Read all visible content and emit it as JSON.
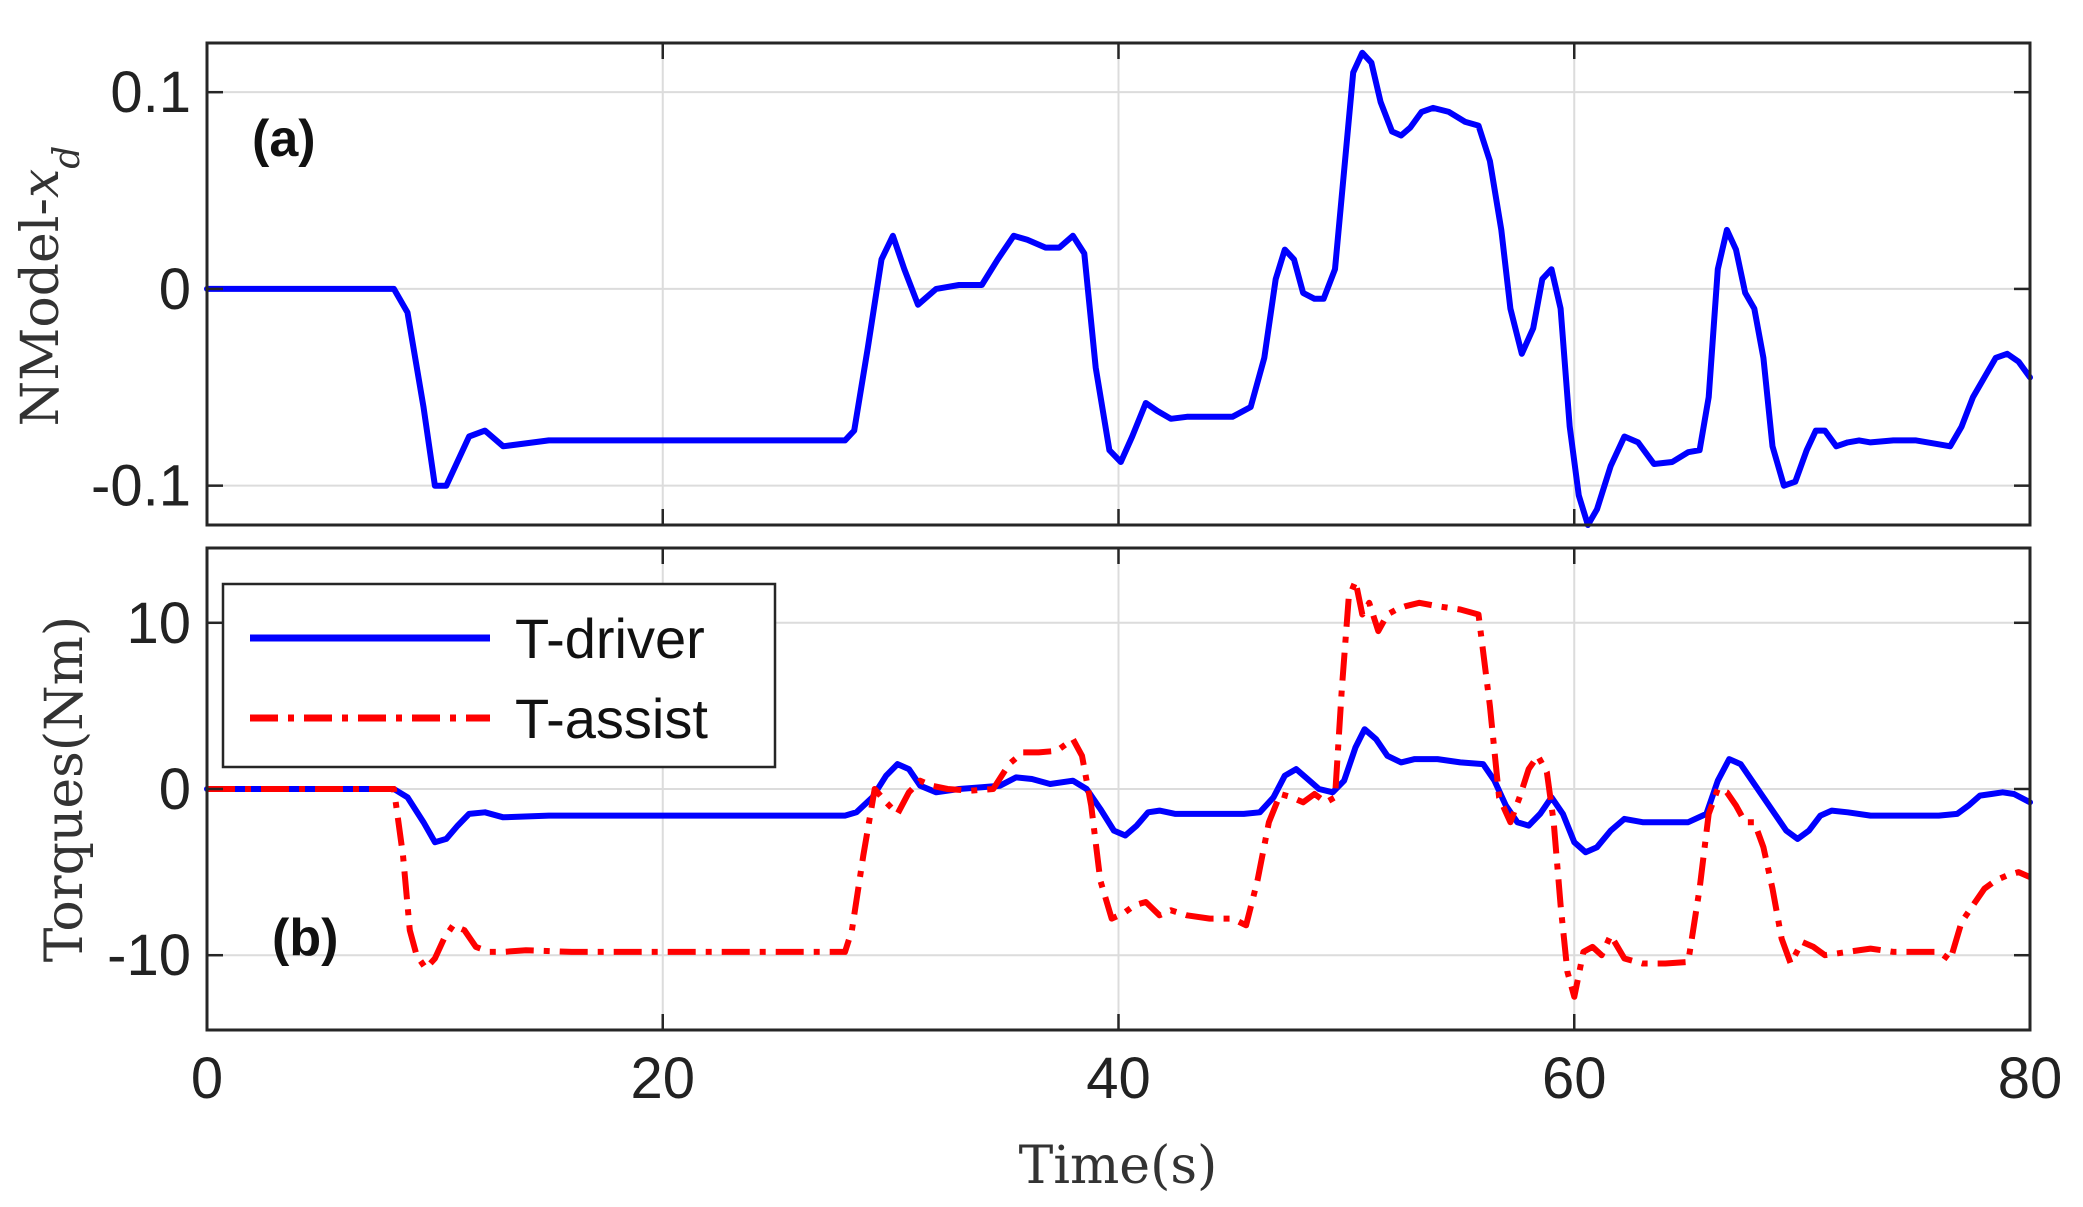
{
  "chart_data": [
    {
      "type": "line",
      "panel_label": "(a)",
      "ylabel_text": "NModel-",
      "ylabel_math": "x",
      "ylabel_sub": "d",
      "xlim": [
        0,
        80
      ],
      "ylim": [
        -0.12,
        0.125
      ],
      "yticks": [
        0.1,
        0,
        -0.1
      ],
      "ytick_labels": [
        "0.1",
        "0",
        "-0.1"
      ],
      "grid": true,
      "series": [
        {
          "color": "#0000ff",
          "style": "solid",
          "x": [
            0,
            8.2,
            8.8,
            9.5,
            10.0,
            10.5,
            11.5,
            12.2,
            13.0,
            15,
            20,
            25,
            28,
            28.4,
            29.0,
            29.6,
            30.1,
            30.6,
            31.2,
            32.0,
            33.0,
            34.0,
            34.7,
            35.4,
            36.0,
            36.8,
            37.4,
            38.0,
            38.5,
            39.0,
            39.6,
            40.1,
            40.6,
            41.2,
            41.7,
            42.3,
            43.0,
            44.0,
            45.0,
            45.8,
            46.4,
            46.9,
            47.3,
            47.7,
            48.1,
            48.6,
            49.0,
            49.5,
            49.9,
            50.3,
            50.7,
            51.1,
            51.5,
            52.0,
            52.4,
            52.8,
            53.3,
            53.8,
            54.5,
            55.2,
            55.8,
            56.3,
            56.8,
            57.2,
            57.7,
            58.2,
            58.6,
            59.0,
            59.4,
            59.8,
            60.2,
            60.6,
            61.0,
            61.6,
            62.2,
            62.8,
            63.5,
            64.3,
            65.0,
            65.5,
            65.9,
            66.3,
            66.7,
            67.1,
            67.5,
            67.9,
            68.3,
            68.7,
            69.2,
            69.7,
            70.2,
            70.6,
            71.0,
            71.5,
            72.0,
            72.5,
            73.0,
            74.0,
            75.0,
            76.0,
            76.5,
            77.0,
            77.5,
            78.0,
            78.5,
            79.0,
            79.5,
            80
          ],
          "y": [
            0,
            0,
            -0.012,
            -0.06,
            -0.1,
            -0.1,
            -0.075,
            -0.072,
            -0.08,
            -0.077,
            -0.077,
            -0.077,
            -0.077,
            -0.072,
            -0.03,
            0.015,
            0.027,
            0.01,
            -0.008,
            0.0,
            0.002,
            0.002,
            0.015,
            0.027,
            0.025,
            0.021,
            0.021,
            0.027,
            0.018,
            -0.04,
            -0.082,
            -0.088,
            -0.075,
            -0.058,
            -0.062,
            -0.066,
            -0.065,
            -0.065,
            -0.065,
            -0.06,
            -0.035,
            0.005,
            0.02,
            0.015,
            -0.002,
            -0.005,
            -0.005,
            0.01,
            0.06,
            0.11,
            0.12,
            0.115,
            0.095,
            0.08,
            0.078,
            0.082,
            0.09,
            0.092,
            0.09,
            0.085,
            0.083,
            0.065,
            0.03,
            -0.01,
            -0.033,
            -0.02,
            0.005,
            0.01,
            -0.01,
            -0.07,
            -0.105,
            -0.12,
            -0.112,
            -0.09,
            -0.075,
            -0.078,
            -0.089,
            -0.088,
            -0.083,
            -0.082,
            -0.055,
            0.01,
            0.03,
            0.02,
            -0.002,
            -0.01,
            -0.035,
            -0.08,
            -0.1,
            -0.098,
            -0.082,
            -0.072,
            -0.072,
            -0.08,
            -0.078,
            -0.077,
            -0.078,
            -0.077,
            -0.077,
            -0.079,
            -0.08,
            -0.07,
            -0.055,
            -0.045,
            -0.035,
            -0.033,
            -0.037,
            -0.045
          ]
        }
      ]
    },
    {
      "type": "line",
      "panel_label": "(b)",
      "ylabel": "Torques(Nm)",
      "xlabel": "Time(s)",
      "xlim": [
        0,
        80
      ],
      "ylim": [
        -14.5,
        14.5
      ],
      "xticks": [
        0,
        20,
        40,
        60,
        80
      ],
      "xtick_labels": [
        "0",
        "20",
        "40",
        "60",
        "80"
      ],
      "yticks": [
        10,
        0,
        -10
      ],
      "ytick_labels": [
        "10",
        "0",
        "-10"
      ],
      "grid": true,
      "legend_position": "top-left",
      "series": [
        {
          "name": "T-driver",
          "color": "#0000ff",
          "style": "solid",
          "x": [
            0,
            8.2,
            8.8,
            9.5,
            10.0,
            10.5,
            11.0,
            11.5,
            12.2,
            13.0,
            15,
            20,
            25,
            28,
            28.5,
            29.2,
            29.8,
            30.3,
            30.8,
            31.3,
            32.0,
            33.0,
            34.0,
            34.8,
            35.5,
            36.2,
            37.0,
            38.0,
            38.6,
            39.2,
            39.8,
            40.3,
            40.8,
            41.3,
            41.8,
            42.5,
            43.5,
            44.5,
            45.5,
            46.2,
            46.8,
            47.3,
            47.8,
            48.3,
            48.8,
            49.4,
            49.9,
            50.4,
            50.8,
            51.3,
            51.8,
            52.4,
            53.0,
            54.0,
            55.0,
            56.0,
            56.5,
            57.0,
            57.5,
            58.0,
            58.5,
            59.0,
            59.5,
            60.0,
            60.5,
            61.0,
            61.6,
            62.2,
            63.0,
            64.0,
            65.0,
            65.8,
            66.3,
            66.8,
            67.3,
            67.8,
            68.3,
            68.8,
            69.3,
            69.8,
            70.3,
            70.8,
            71.3,
            72.0,
            73.0,
            74.0,
            75.0,
            76.0,
            76.8,
            77.3,
            77.8,
            78.3,
            78.8,
            79.3,
            80
          ],
          "y": [
            0,
            0,
            -0.5,
            -2.0,
            -3.2,
            -3.0,
            -2.2,
            -1.5,
            -1.4,
            -1.7,
            -1.6,
            -1.6,
            -1.6,
            -1.6,
            -1.4,
            -0.5,
            0.8,
            1.5,
            1.2,
            0.2,
            -0.2,
            0.0,
            0.1,
            0.2,
            0.7,
            0.6,
            0.3,
            0.5,
            0.0,
            -1.2,
            -2.5,
            -2.8,
            -2.2,
            -1.4,
            -1.3,
            -1.5,
            -1.5,
            -1.5,
            -1.5,
            -1.4,
            -0.5,
            0.8,
            1.2,
            0.6,
            0.0,
            -0.2,
            0.5,
            2.5,
            3.6,
            3.0,
            2.0,
            1.6,
            1.8,
            1.8,
            1.6,
            1.5,
            0.5,
            -1.0,
            -2.0,
            -2.2,
            -1.5,
            -0.5,
            -1.5,
            -3.2,
            -3.8,
            -3.5,
            -2.5,
            -1.8,
            -2.0,
            -2.0,
            -2.0,
            -1.5,
            0.5,
            1.8,
            1.5,
            0.5,
            -0.5,
            -1.5,
            -2.5,
            -3.0,
            -2.5,
            -1.6,
            -1.3,
            -1.4,
            -1.6,
            -1.6,
            -1.6,
            -1.6,
            -1.5,
            -1.0,
            -0.4,
            -0.3,
            -0.2,
            -0.3,
            -0.8
          ]
        },
        {
          "name": "T-assist",
          "color": "#ff0000",
          "style": "dash-dot",
          "x": [
            0,
            8.2,
            8.6,
            8.9,
            9.2,
            9.6,
            10.0,
            10.4,
            10.8,
            11.3,
            11.8,
            12.4,
            13.0,
            14.0,
            16,
            20,
            25,
            28,
            28.3,
            28.8,
            29.3,
            29.8,
            30.3,
            30.8,
            31.3,
            31.8,
            32.5,
            33.5,
            34.5,
            35.2,
            35.8,
            36.5,
            37.3,
            38.0,
            38.4,
            38.8,
            39.2,
            39.7,
            40.2,
            40.7,
            41.2,
            41.8,
            42.3,
            43.0,
            44.0,
            45.0,
            45.6,
            46.1,
            46.6,
            47.1,
            47.6,
            48.1,
            48.6,
            49.1,
            49.5,
            49.8,
            50.1,
            50.4,
            50.7,
            51.0,
            51.4,
            51.8,
            52.2,
            52.6,
            53.2,
            54.0,
            55.0,
            55.8,
            56.3,
            56.7,
            57.2,
            57.6,
            58.0,
            58.4,
            58.8,
            59.1,
            59.4,
            59.7,
            60.0,
            60.4,
            60.8,
            61.2,
            61.6,
            62.2,
            63.0,
            64.0,
            65.0,
            65.5,
            65.9,
            66.3,
            66.7,
            67.1,
            67.5,
            67.9,
            68.3,
            68.7,
            69.1,
            69.5,
            70.0,
            70.5,
            71.0,
            72.0,
            73.0,
            74.0,
            75.0,
            76.0,
            76.5,
            77.0,
            77.5,
            78.0,
            78.5,
            79.0,
            79.5,
            80
          ],
          "y": [
            0,
            0,
            -4.0,
            -8.5,
            -10.0,
            -10.8,
            -10.2,
            -9.0,
            -8.2,
            -8.5,
            -9.5,
            -9.8,
            -9.8,
            -9.7,
            -9.8,
            -9.8,
            -9.8,
            -9.8,
            -8.5,
            -4.0,
            0.0,
            -0.8,
            -1.5,
            -0.2,
            0.5,
            0.2,
            0.0,
            -0.1,
            0.0,
            1.5,
            2.2,
            2.2,
            2.3,
            3.0,
            2.0,
            -1.0,
            -5.5,
            -7.8,
            -7.5,
            -7.0,
            -6.8,
            -7.6,
            -7.3,
            -7.6,
            -7.8,
            -7.8,
            -8.2,
            -5.5,
            -2.0,
            -0.3,
            -0.5,
            -0.8,
            -0.3,
            -0.8,
            -0.5,
            6.0,
            11.5,
            12.5,
            10.5,
            11.2,
            9.5,
            10.5,
            10.8,
            11.0,
            11.2,
            11.0,
            10.8,
            10.5,
            5.0,
            -0.5,
            -2.0,
            -0.5,
            1.2,
            2.0,
            1.0,
            -2.0,
            -7.0,
            -11.0,
            -12.5,
            -9.8,
            -9.5,
            -10.0,
            -8.8,
            -10.2,
            -10.5,
            -10.5,
            -10.4,
            -6.0,
            -1.5,
            0.0,
            -0.2,
            -1.0,
            -2.0,
            -2.0,
            -3.5,
            -6.0,
            -9.0,
            -10.5,
            -9.2,
            -9.5,
            -10.0,
            -9.8,
            -9.6,
            -9.8,
            -9.8,
            -9.8,
            -10.3,
            -8.0,
            -7.0,
            -6.0,
            -5.5,
            -5.2,
            -5.0,
            -5.3
          ]
        }
      ]
    }
  ]
}
